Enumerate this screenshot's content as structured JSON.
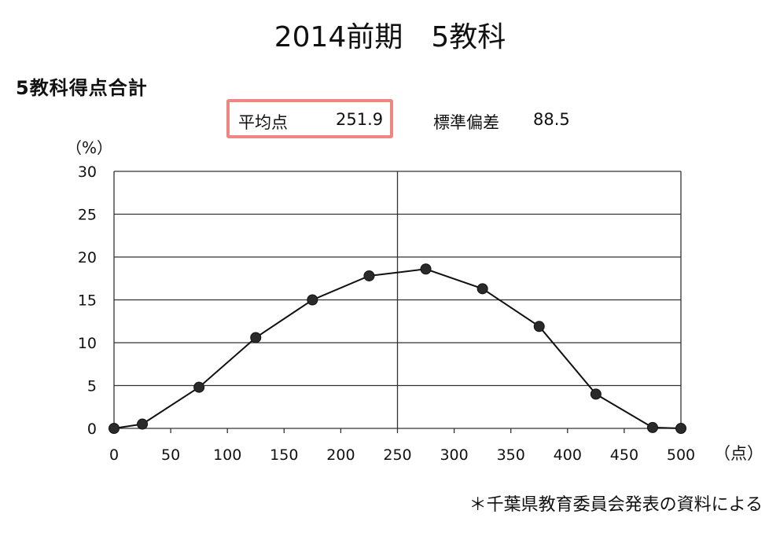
{
  "page_title": "2014前期　5教科",
  "section_title": "5教科得点合計",
  "stats": {
    "mean_label": "平均点",
    "mean_value": "251.9",
    "sd_label": "標準偏差",
    "sd_value": "88.5",
    "highlight_color": "#f0867f"
  },
  "source_note": "＊千葉県教育委員会発表の資料による",
  "chart_data": {
    "type": "line",
    "ylabel": "（%）",
    "xlabel": "（点）",
    "xlim": [
      0,
      500
    ],
    "ylim": [
      0,
      30
    ],
    "xticks": [
      0,
      50,
      100,
      150,
      200,
      250,
      300,
      350,
      400,
      450,
      500
    ],
    "yticks": [
      0,
      5,
      10,
      15,
      20,
      25,
      30
    ],
    "grid": "horizontal",
    "reference_line_x": 250,
    "series": [
      {
        "x": [
          0,
          25,
          75,
          125,
          175,
          225,
          275,
          325,
          375,
          425,
          475,
          500
        ],
        "y": [
          0,
          0.5,
          4.8,
          10.6,
          15.0,
          17.8,
          18.6,
          16.3,
          11.9,
          4.0,
          0.1,
          0
        ]
      }
    ]
  }
}
